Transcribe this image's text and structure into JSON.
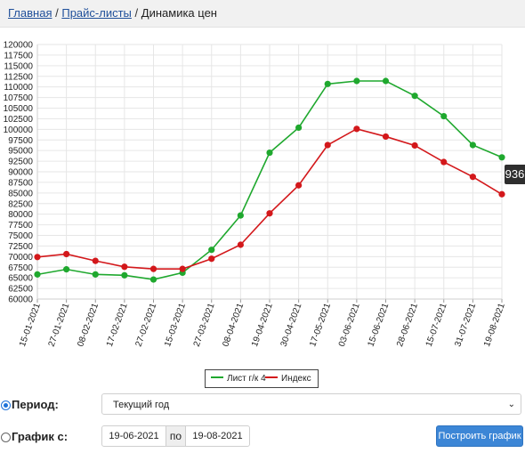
{
  "breadcrumb": {
    "home": "Главная",
    "price_lists": "Прайс-листы",
    "current": "Динамика цен",
    "separator": "/"
  },
  "tooltip": {
    "value_text": "936"
  },
  "colors": {
    "series1": "#1fa82e",
    "series2": "#d3181b",
    "accent": "#3c86d6"
  },
  "chart_data": {
    "type": "line",
    "x": [
      "15-01-2021",
      "27-01-2021",
      "08-02-2021",
      "17-02-2021",
      "27-02-2021",
      "15-03-2021",
      "27-03-2021",
      "08-04-2021",
      "19-04-2021",
      "30-04-2021",
      "17-05-2021",
      "03-06-2021",
      "15-06-2021",
      "28-06-2021",
      "15-07-2021",
      "31-07-2021",
      "19-08-2021"
    ],
    "series": [
      {
        "name": "Лист г/к 4",
        "color": "#1fa82e",
        "values": [
          65800,
          67000,
          65800,
          65600,
          64600,
          66200,
          71600,
          79700,
          94500,
          100400,
          110700,
          111400,
          111400,
          107900,
          103100,
          96300,
          93400
        ]
      },
      {
        "name": "Индекс",
        "color": "#d3181b",
        "values": [
          69900,
          70600,
          69000,
          67600,
          67100,
          67100,
          69500,
          72800,
          80200,
          86800,
          96300,
          100100,
          98300,
          96200,
          92300,
          88800,
          84700
        ]
      }
    ],
    "yticks": [
      "120000",
      "117500",
      "115000",
      "112500",
      "110000",
      "107500",
      "105000",
      "102500",
      "100000",
      "97500",
      "95000",
      "92500",
      "90000",
      "87500",
      "85000",
      "82500",
      "80000",
      "77500",
      "75000",
      "72500",
      "70000",
      "67500",
      "65000",
      "62500",
      "60000"
    ],
    "ylim": [
      60000,
      120000
    ],
    "grid": true,
    "legend_position": "bottom-center"
  },
  "controls": {
    "period_label": "Период:",
    "period_value": "Текущий год",
    "graph_from_label": "График с:",
    "date_from": "19-06-2021",
    "po_label": "по",
    "date_to": "19-08-2021",
    "build_button": "Построить график"
  }
}
